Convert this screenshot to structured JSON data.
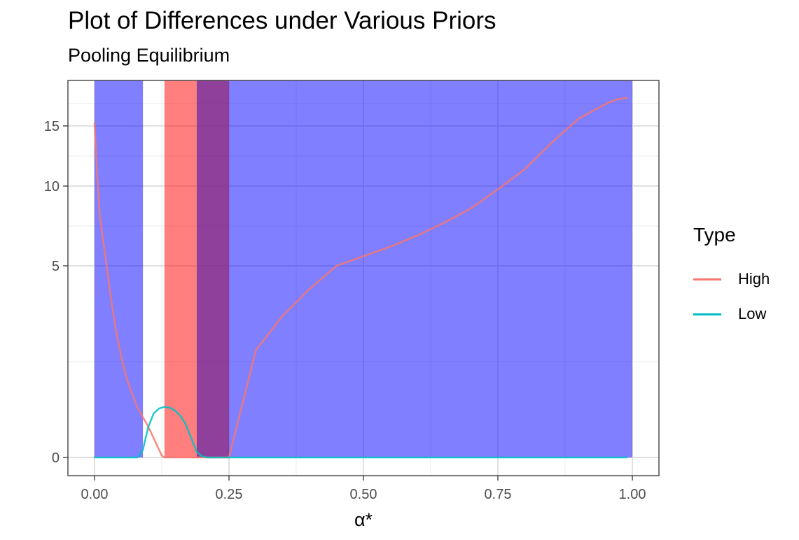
{
  "title": "Plot of Differences under Various Priors",
  "subtitle": "Pooling Equilibrium",
  "legend": {
    "title": "Type",
    "items": [
      {
        "label": "High",
        "color": "#F8766D"
      },
      {
        "label": "Low",
        "color": "#00BFC4"
      }
    ]
  },
  "chart_data": {
    "type": "line",
    "title": "Plot of Differences under Various Priors",
    "subtitle": "Pooling Equilibrium",
    "xlabel": "α*",
    "ylabel": "",
    "xlim": [
      -0.05,
      1.05
    ],
    "ylim": [
      -1,
      20
    ],
    "grid": true,
    "legend_position": "right",
    "x_ticks": [
      {
        "value": 0.0,
        "label": "0.00"
      },
      {
        "value": 0.25,
        "label": "0.25"
      },
      {
        "value": 0.5,
        "label": "0.50"
      },
      {
        "value": 0.75,
        "label": "0.75"
      },
      {
        "value": 1.0,
        "label": "1.00"
      }
    ],
    "y_ticks": [
      {
        "value": 0,
        "label": "0"
      },
      {
        "value": 5,
        "label": "5"
      },
      {
        "value": 10,
        "label": "10"
      },
      {
        "value": 15,
        "label": "15"
      }
    ],
    "y_ticks_minor": [
      2.5,
      7.5,
      12.5,
      17.5
    ],
    "x_ticks_minor": [
      0.125,
      0.375,
      0.625,
      0.875
    ],
    "shaded_regions": [
      {
        "xmin": 0.0,
        "xmax": 0.09,
        "color": "#0000FF",
        "opacity": 0.5
      },
      {
        "xmin": 0.13,
        "xmax": 0.19,
        "color": "#FF0000",
        "opacity": 0.5
      },
      {
        "xmin": 0.19,
        "xmax": 0.25,
        "color": "#7B1F8A",
        "opacity": 0.85
      },
      {
        "xmin": 0.25,
        "xmax": 1.0,
        "color": "#0000FF",
        "opacity": 0.5
      }
    ],
    "series": [
      {
        "name": "High",
        "color": "#F8766D",
        "x": [
          0.0,
          0.005,
          0.01,
          0.02,
          0.03,
          0.04,
          0.05,
          0.06,
          0.07,
          0.08,
          0.09,
          0.1,
          0.11,
          0.12,
          0.125,
          0.13,
          0.15,
          0.2,
          0.25,
          0.3,
          0.35,
          0.4,
          0.45,
          0.5,
          0.55,
          0.6,
          0.65,
          0.7,
          0.75,
          0.8,
          0.85,
          0.9,
          0.95,
          0.97,
          0.99
        ],
        "y": [
          15.3,
          11.0,
          8.0,
          5.6,
          4.2,
          3.3,
          2.6,
          2.05,
          1.65,
          1.3,
          1.05,
          0.8,
          0.5,
          0.2,
          0.05,
          0.0,
          0.0,
          0.0,
          0.0,
          2.8,
          3.7,
          4.4,
          5.0,
          5.6,
          6.2,
          6.9,
          7.7,
          8.6,
          9.8,
          11.4,
          13.6,
          15.8,
          17.4,
          17.9,
          18.1
        ]
      },
      {
        "name": "Low",
        "color": "#00BFC4",
        "x": [
          0.0,
          0.05,
          0.08,
          0.09,
          0.1,
          0.11,
          0.12,
          0.13,
          0.14,
          0.15,
          0.16,
          0.17,
          0.18,
          0.19,
          0.2,
          0.21,
          0.25,
          0.5,
          0.75,
          0.99
        ],
        "y": [
          0.0,
          0.0,
          0.0,
          0.2,
          0.8,
          1.15,
          1.28,
          1.32,
          1.3,
          1.22,
          1.08,
          0.85,
          0.5,
          0.15,
          0.03,
          0.0,
          0.0,
          0.0,
          0.0,
          0.0
        ]
      }
    ]
  }
}
